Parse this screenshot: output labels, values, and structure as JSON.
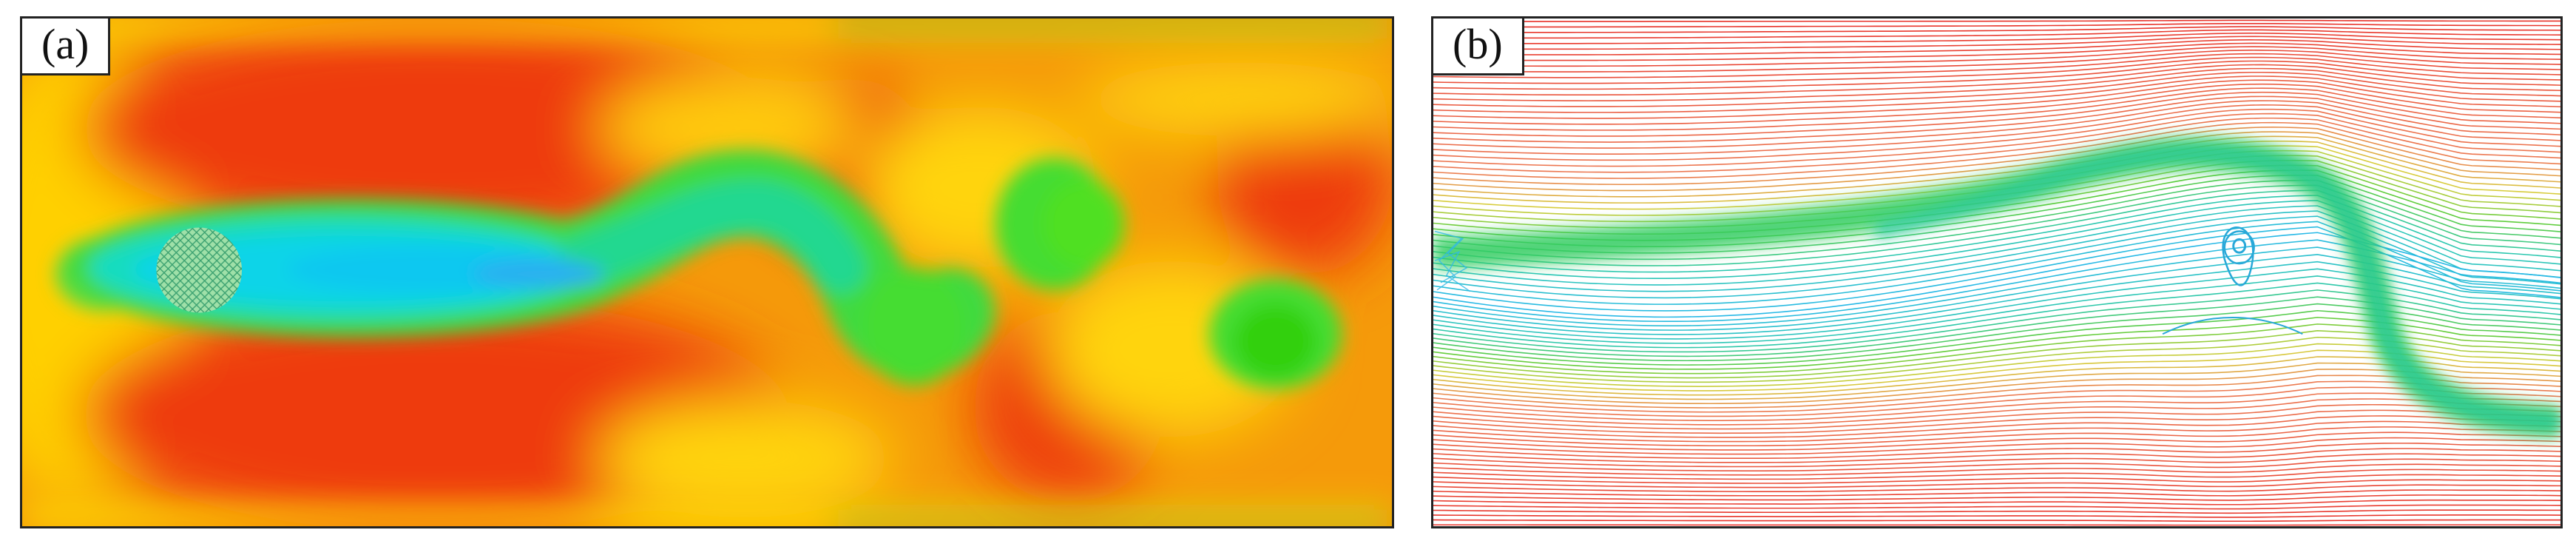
{
  "figure": {
    "panels": [
      {
        "label": "(a)"
      },
      {
        "label": "(b)"
      }
    ],
    "colors": {
      "high": "#e8200a",
      "orange": "#f37a08",
      "yellow": "#ffe800",
      "green": "#30d810",
      "cyan": "#08d0f0",
      "blue": "#2aa8f0",
      "background": "#ffffff",
      "frame": "#222222"
    }
  }
}
